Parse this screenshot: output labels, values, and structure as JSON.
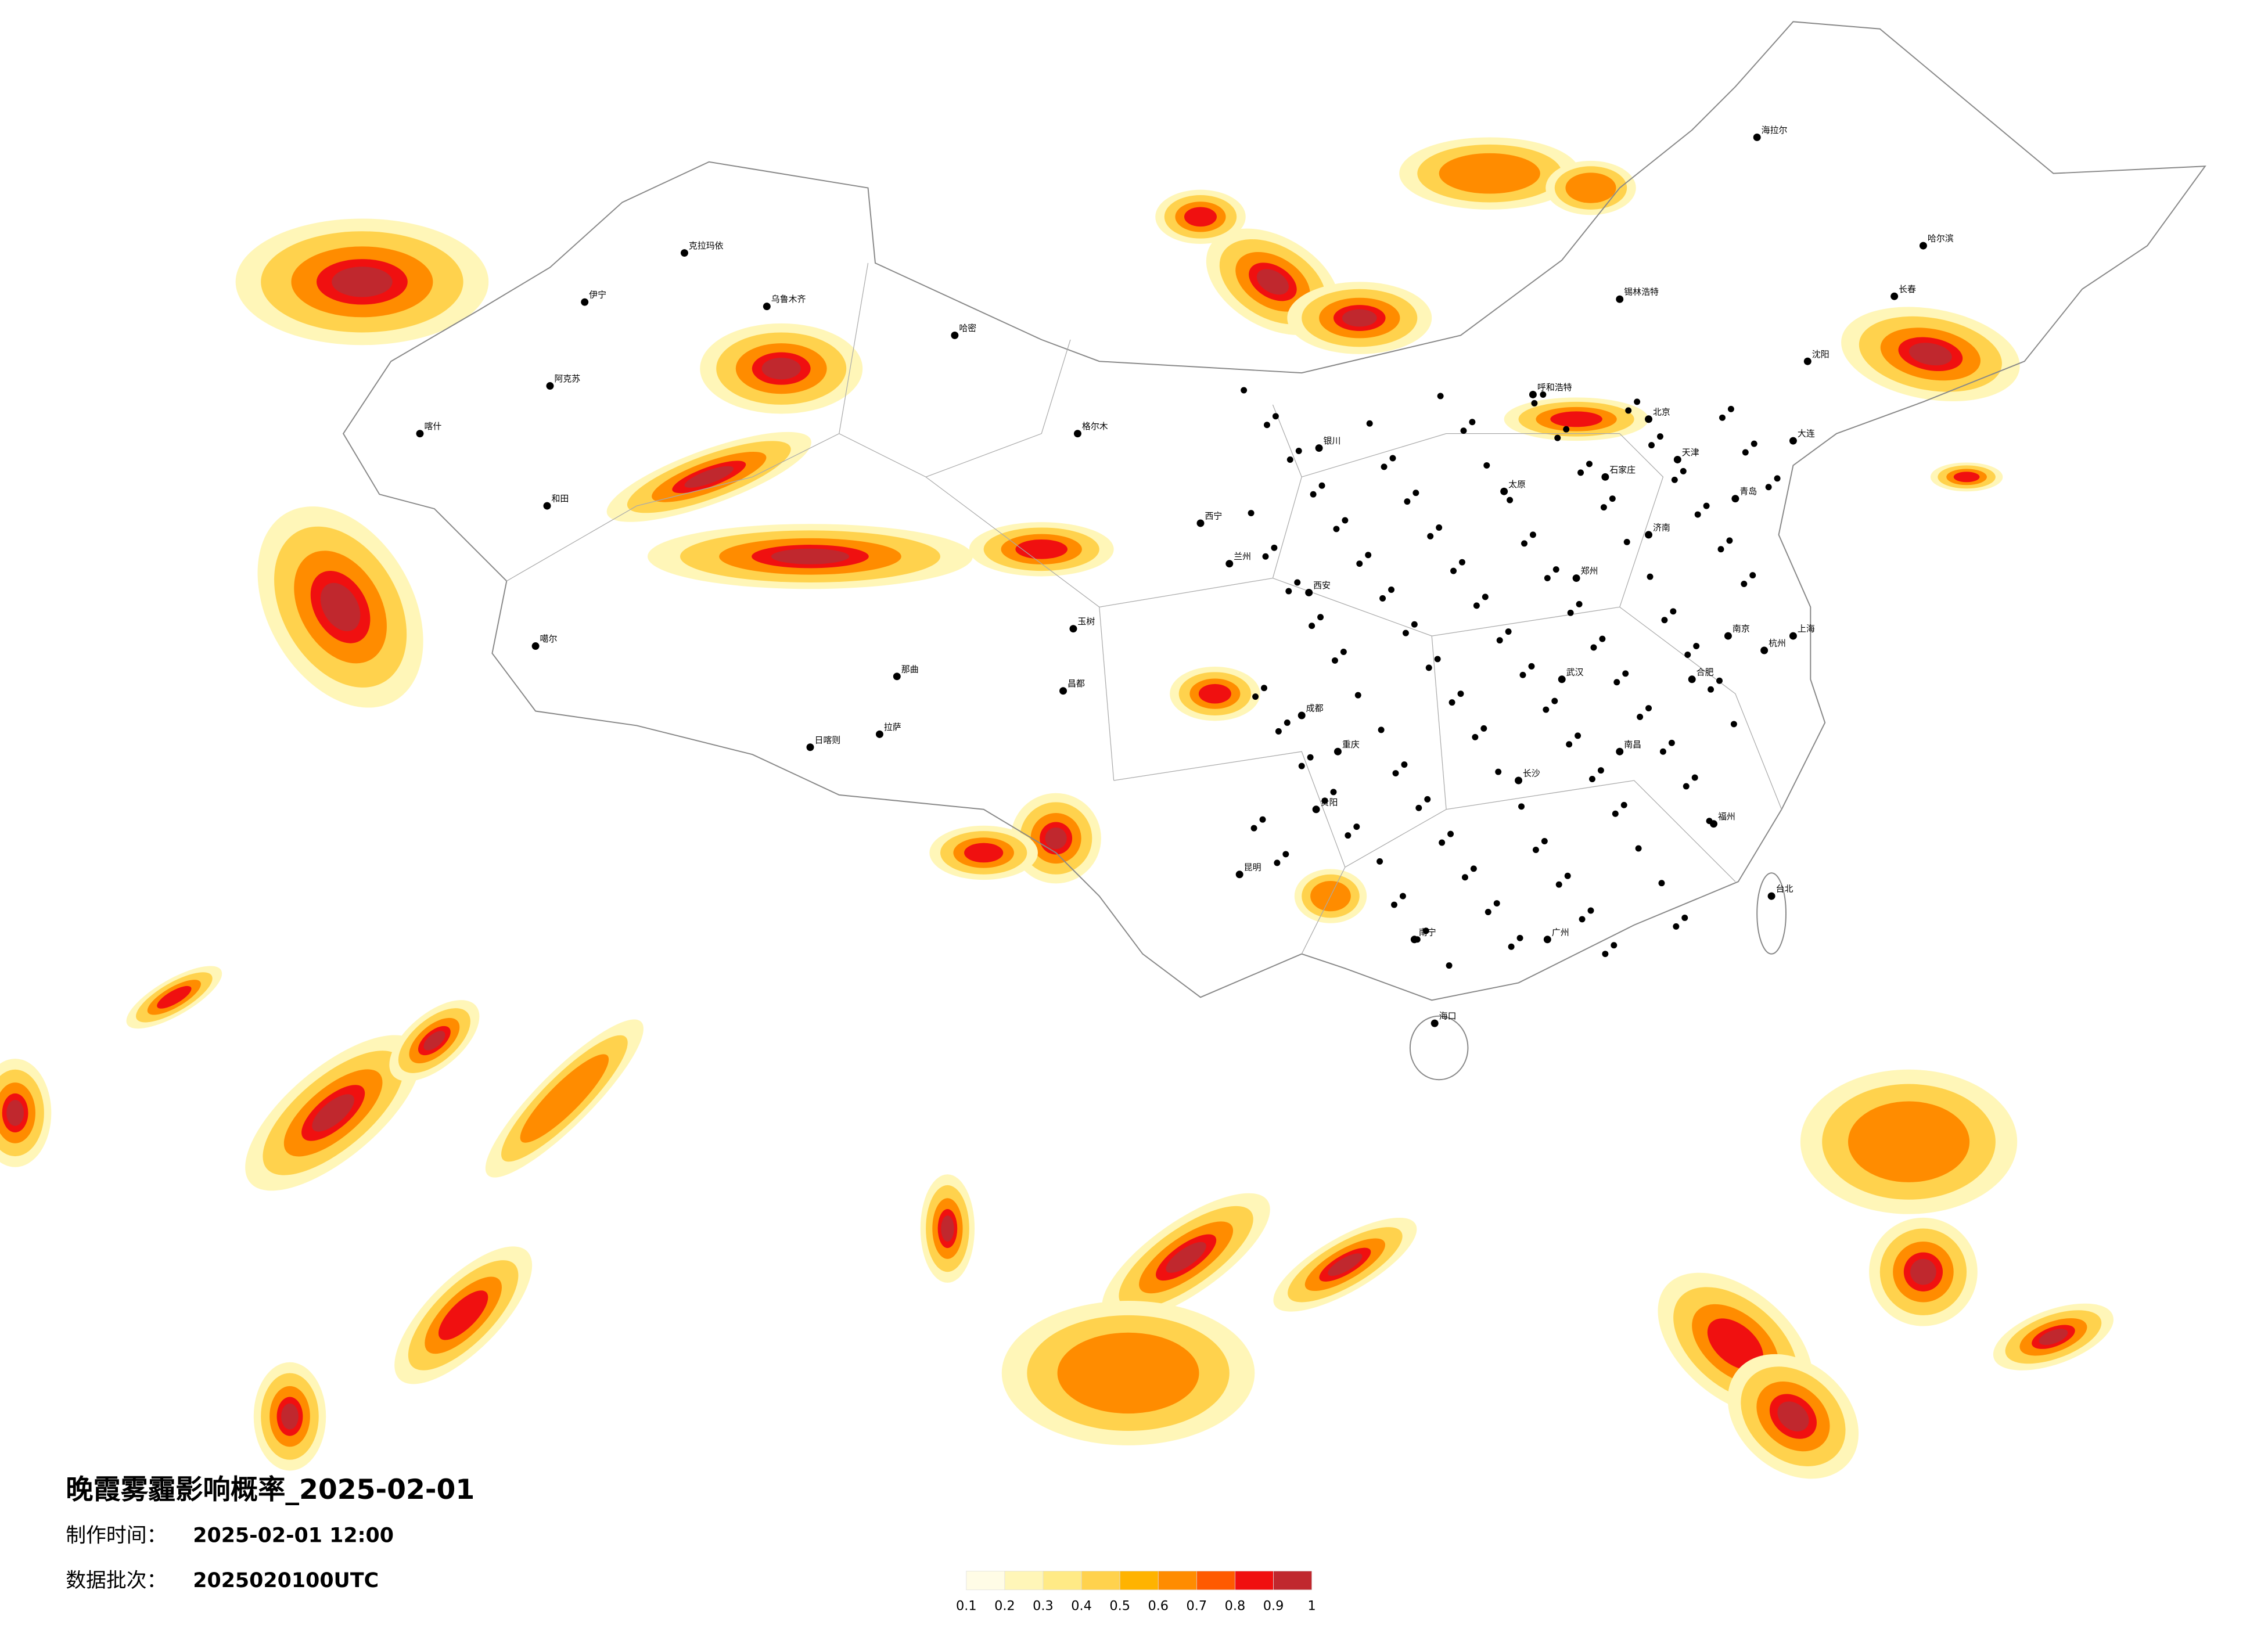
{
  "title": "晚霞雾霾影响概率_2025-02-01",
  "made_time": {
    "label": "制作时间：",
    "value": "2025-02-01 12:00"
  },
  "batch": {
    "label": "数据批次：",
    "value": "2025020100UTC"
  },
  "legend": {
    "ticks": [
      0.1,
      0.2,
      0.3,
      0.4,
      0.5,
      0.6,
      0.7,
      0.8,
      0.9,
      1
    ],
    "colors": [
      "#fffce6",
      "#fff6b8",
      "#ffea86",
      "#ffd24d",
      "#ffb300",
      "#ff8c00",
      "#ff5a00",
      "#f01010",
      "#c0282e"
    ]
  },
  "cities": [
    "克拉玛依",
    "伊宁",
    "乌鲁木齐",
    "哈密",
    "阿克苏",
    "喀什",
    "和田",
    "噶尔",
    "日喀则",
    "拉萨",
    "那曲",
    "昌都",
    "玉树",
    "格尔木",
    "西宁",
    "兰州",
    "银川",
    "西安",
    "成都",
    "重庆",
    "昆明",
    "贵阳",
    "南宁",
    "海口",
    "广州",
    "长沙",
    "武汉",
    "南昌",
    "福州",
    "杭州",
    "上海",
    "南京",
    "合肥",
    "郑州",
    "济南",
    "石家庄",
    "太原",
    "北京",
    "天津",
    "呼和浩特",
    "锡林浩特",
    "沈阳",
    "长春",
    "哈尔滨",
    "海拉尔",
    "台北",
    "大连",
    "青岛"
  ]
}
